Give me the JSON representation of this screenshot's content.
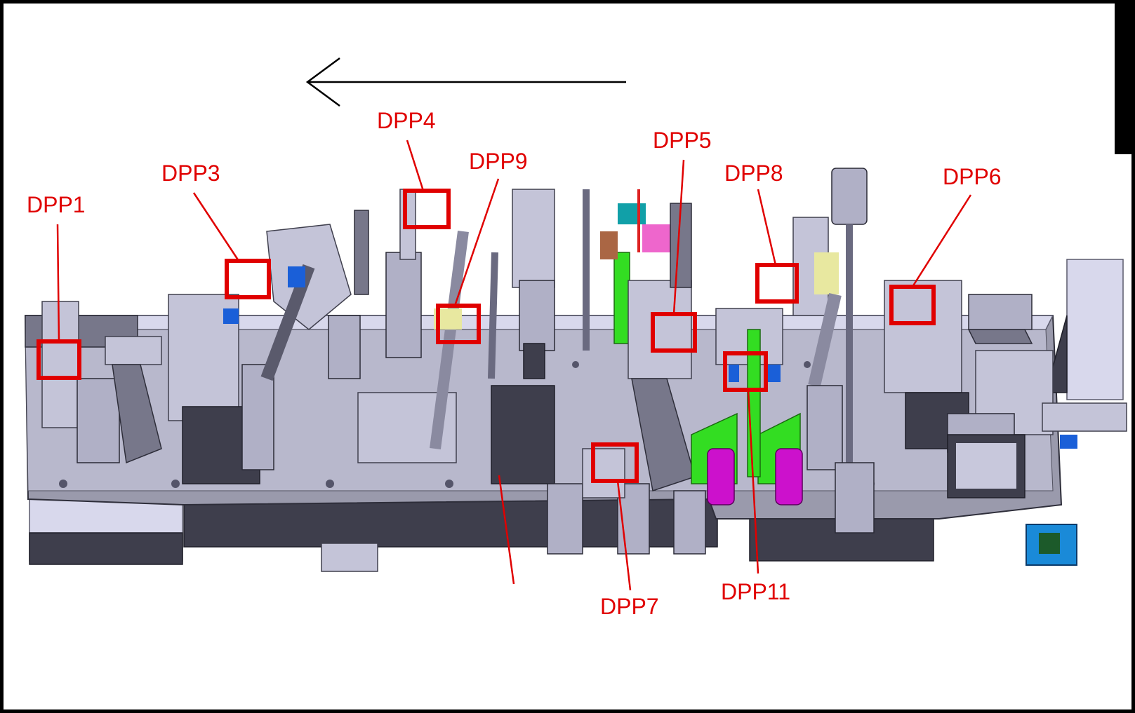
{
  "annotation_color": "#e00000",
  "component_colors": {
    "steel_light": "#d8d8ec",
    "steel_mid": "#9a9aac",
    "steel_dark": "#3e3e4c",
    "green_bracket": "#33dd22",
    "magenta_cylinder": "#cc11cc",
    "blue_block": "#1a5fd8",
    "teal_part": "#11a0a8",
    "pink_part": "#ee66cc",
    "brown_part": "#aa6644"
  },
  "flow_arrow": {
    "direction": "left"
  },
  "dpps": [
    {
      "id": "dpp1",
      "label": "DPP1"
    },
    {
      "id": "dpp3",
      "label": "DPP3"
    },
    {
      "id": "dpp4",
      "label": "DPP4"
    },
    {
      "id": "dpp9",
      "label": "DPP9"
    },
    {
      "id": "dpp5",
      "label": "DPP5"
    },
    {
      "id": "dpp8",
      "label": "DPP8"
    },
    {
      "id": "dpp6",
      "label": "DPP6"
    },
    {
      "id": "dpp7",
      "label": "DPP7"
    },
    {
      "id": "dpp11",
      "label": "DPP11"
    }
  ]
}
